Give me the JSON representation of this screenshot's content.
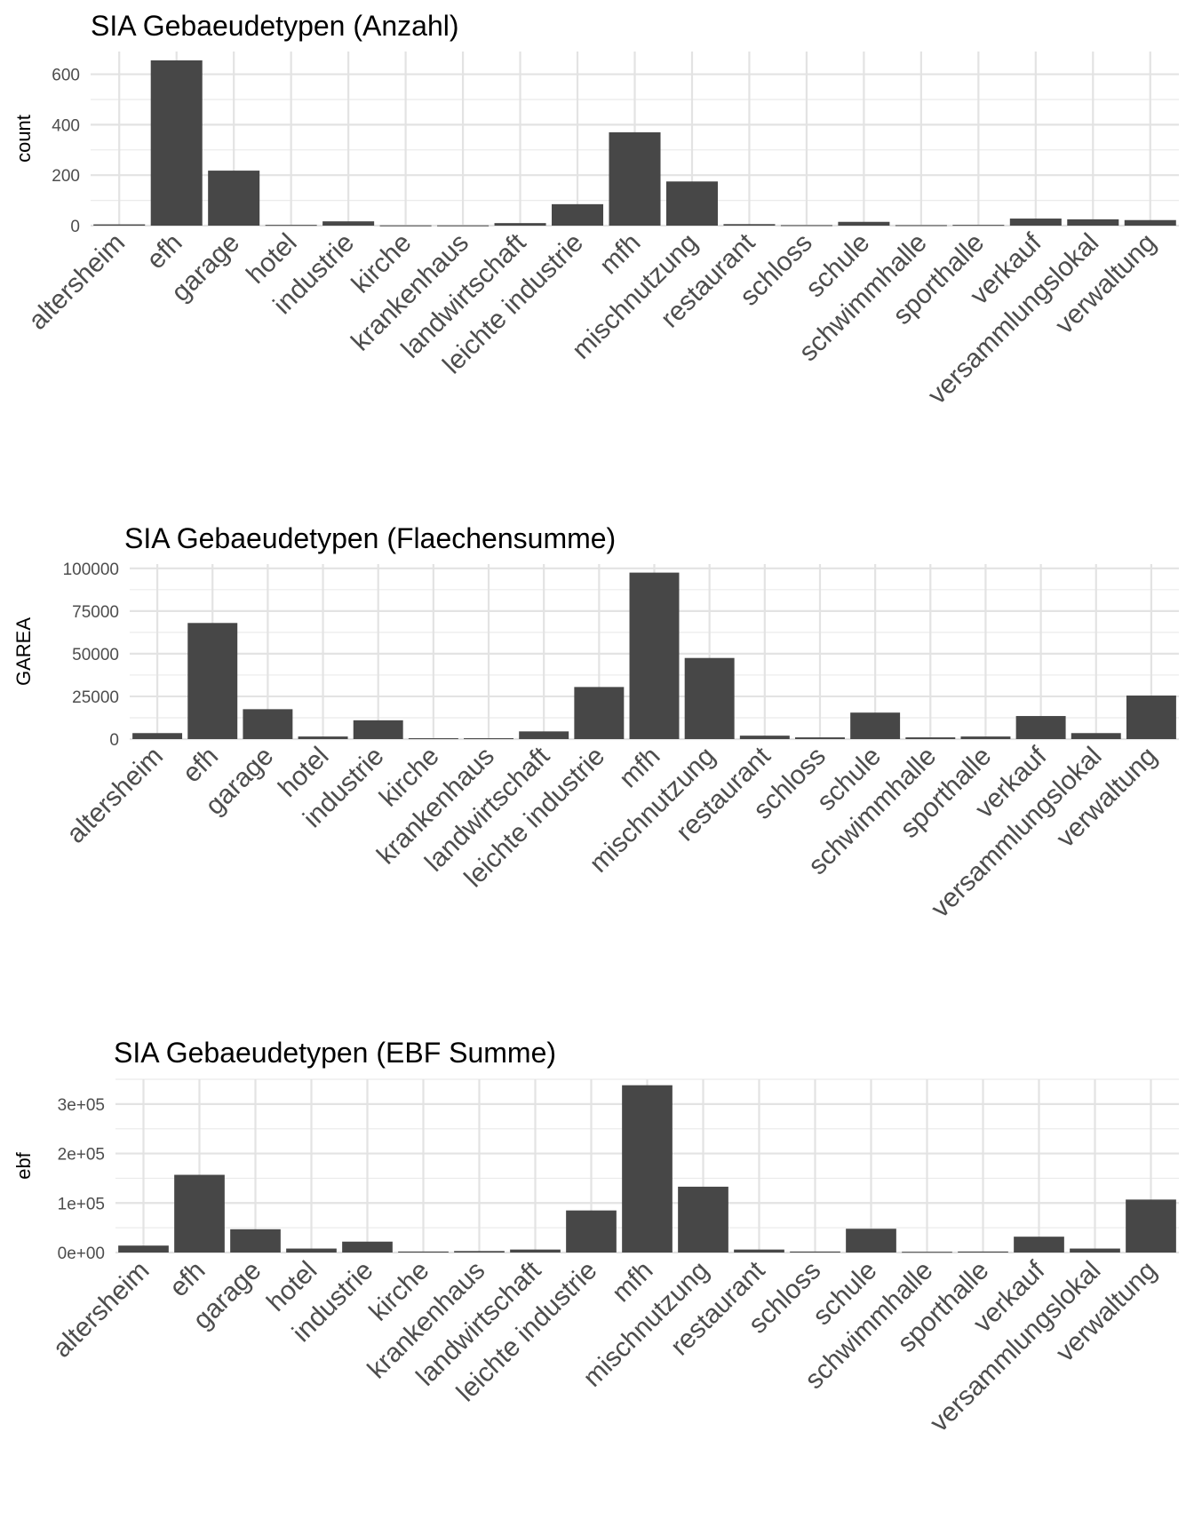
{
  "chart_data": [
    {
      "type": "bar",
      "title": "SIA Gebaeudetypen (Anzahl)",
      "xlabel": "",
      "ylabel": "count",
      "categories": [
        "altersheim",
        "efh",
        "garage",
        "hotel",
        "industrie",
        "kirche",
        "krankenhaus",
        "landwirtschaft",
        "leichte industrie",
        "mfh",
        "mischnutzung",
        "restaurant",
        "schloss",
        "schule",
        "schwimmhalle",
        "sporthalle",
        "verkauf",
        "versammlungslokal",
        "verwaltung"
      ],
      "values": [
        5,
        655,
        218,
        3,
        17,
        1,
        1,
        10,
        85,
        370,
        175,
        6,
        2,
        15,
        2,
        3,
        28,
        25,
        22
      ],
      "ylim": [
        0,
        690
      ],
      "yticks": [
        0,
        200,
        400,
        600
      ],
      "ytick_labels": [
        "0",
        "200",
        "400",
        "600"
      ],
      "grid": true,
      "color": "#474747"
    },
    {
      "type": "bar",
      "title": "SIA Gebaeudetypen (Flaechensumme)",
      "xlabel": "",
      "ylabel": "GAREA",
      "categories": [
        "altersheim",
        "efh",
        "garage",
        "hotel",
        "industrie",
        "kirche",
        "krankenhaus",
        "landwirtschaft",
        "leichte industrie",
        "mfh",
        "mischnutzung",
        "restaurant",
        "schloss",
        "schule",
        "schwimmhalle",
        "sporthalle",
        "verkauf",
        "versammlungslokal",
        "verwaltung"
      ],
      "values": [
        3500,
        68000,
        17500,
        1500,
        11000,
        500,
        500,
        4500,
        30500,
        97500,
        47500,
        2000,
        1000,
        15500,
        1000,
        1500,
        13500,
        3500,
        25500
      ],
      "ylim": [
        0,
        102500
      ],
      "yticks": [
        0,
        25000,
        50000,
        75000,
        100000
      ],
      "ytick_labels": [
        "0",
        "25000",
        "50000",
        "75000",
        "100000"
      ],
      "grid": true,
      "color": "#474747"
    },
    {
      "type": "bar",
      "title": "SIA Gebaeudetypen (EBF Summe)",
      "xlabel": "",
      "ylabel": "ebf",
      "categories": [
        "altersheim",
        "efh",
        "garage",
        "hotel",
        "industrie",
        "kirche",
        "krankenhaus",
        "landwirtschaft",
        "leichte industrie",
        "mfh",
        "mischnutzung",
        "restaurant",
        "schloss",
        "schule",
        "schwimmhalle",
        "sporthalle",
        "verkauf",
        "versammlungslokal",
        "verwaltung"
      ],
      "values": [
        14000,
        157000,
        47000,
        8000,
        22000,
        2000,
        3000,
        6000,
        85000,
        338000,
        133000,
        6000,
        2000,
        48000,
        1500,
        2000,
        32000,
        8000,
        107000
      ],
      "ylim": [
        0,
        350000
      ],
      "yticks": [
        0,
        100000,
        200000,
        300000
      ],
      "ytick_labels": [
        "0e+00",
        "1e+05",
        "2e+05",
        "3e+05"
      ],
      "grid": true,
      "color": "#474747"
    }
  ]
}
